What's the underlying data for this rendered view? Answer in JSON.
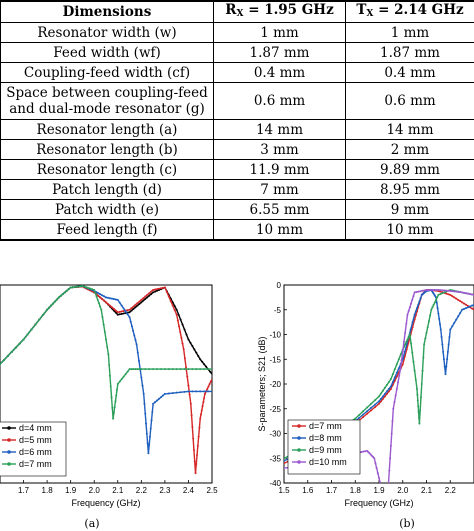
{
  "table": {
    "headers": [
      "Dimensions",
      "R",
      "X",
      "= 1.95 GHz",
      "T",
      "X",
      "= 2.14 GHz"
    ],
    "rows": [
      {
        "name": "Resonator width (w)",
        "rx": "1 mm",
        "tx": "1 mm"
      },
      {
        "name": "Feed width (wf)",
        "rx": "1.87 mm",
        "tx": "1.87 mm"
      },
      {
        "name": "Coupling-feed width (cf)",
        "rx": "0.4 mm",
        "tx": "0.4 mm"
      },
      {
        "name": "Space between coupling-feed and dual-mode resonator (g)",
        "rx": "0.6 mm",
        "tx": "0.6 mm"
      },
      {
        "name": "Resonator length (a)",
        "rx": "14 mm",
        "tx": "14 mm"
      },
      {
        "name": "Resonator length (b)",
        "rx": "3 mm",
        "tx": "2 mm"
      },
      {
        "name": "Resonator length (c)",
        "rx": "11.9 mm",
        "tx": "9.89 mm"
      },
      {
        "name": "Patch length (d)",
        "rx": "7 mm",
        "tx": "8.95 mm"
      },
      {
        "name": "Patch width (e)",
        "rx": "6.55 mm",
        "tx": "9 mm"
      },
      {
        "name": "Feed length (f)",
        "rx": "10 mm",
        "tx": "10 mm"
      }
    ]
  },
  "chart_data": [
    {
      "type": "line",
      "caption": "(a)",
      "xlabel": "Frequency (GHz)",
      "ylabel": "",
      "xlim": [
        1.6,
        2.5
      ],
      "ylim": [
        -40,
        0
      ],
      "xticks": [
        "1.7",
        "1.8",
        "1.9",
        "2.0",
        "2.1",
        "2.2",
        "2.3",
        "2.4",
        "2.5"
      ],
      "legend_position": "bottom-left",
      "series": [
        {
          "name": "d=4 mm",
          "color": "#000000",
          "x": [
            1.6,
            1.7,
            1.8,
            1.85,
            1.9,
            1.95,
            2.0,
            2.05,
            2.1,
            2.15,
            2.2,
            2.25,
            2.3,
            2.35,
            2.4,
            2.45,
            2.5
          ],
          "y": [
            -16,
            -11,
            -5,
            -2.5,
            -0.5,
            -0.3,
            -1.5,
            -3.5,
            -6,
            -5.5,
            -3.5,
            -1.5,
            -0.5,
            -5,
            -11,
            -15,
            -18
          ]
        },
        {
          "name": "d=5 mm",
          "color": "#d62728",
          "x": [
            1.6,
            1.7,
            1.8,
            1.85,
            1.9,
            1.95,
            2.0,
            2.05,
            2.1,
            2.15,
            2.2,
            2.25,
            2.3,
            2.35,
            2.38,
            2.41,
            2.43,
            2.45,
            2.47,
            2.5
          ],
          "y": [
            -16,
            -11,
            -5,
            -2.5,
            -0.5,
            -0.3,
            -1.5,
            -3.5,
            -5.5,
            -5,
            -3,
            -1,
            -0.5,
            -6,
            -13,
            -24,
            -38,
            -27,
            -22,
            -19
          ]
        },
        {
          "name": "d=6 mm",
          "color": "#1f5fbf",
          "x": [
            1.6,
            1.7,
            1.8,
            1.85,
            1.9,
            1.95,
            2.0,
            2.05,
            2.1,
            2.15,
            2.18,
            2.21,
            2.23,
            2.25,
            2.3,
            2.4,
            2.5
          ],
          "y": [
            -16,
            -11,
            -5,
            -2.5,
            -0.5,
            -0.2,
            -1.2,
            -2.5,
            -3,
            -6.5,
            -12,
            -22,
            -34,
            -24,
            -22,
            -21.5,
            -21.5
          ]
        },
        {
          "name": "d=7 mm",
          "color": "#2ca05a",
          "x": [
            1.6,
            1.7,
            1.8,
            1.85,
            1.9,
            1.95,
            2.0,
            2.03,
            2.06,
            2.08,
            2.1,
            2.15,
            2.2,
            2.3,
            2.4,
            2.5
          ],
          "y": [
            -16,
            -11,
            -5,
            -2.5,
            -0.5,
            -0.2,
            -1,
            -5,
            -14,
            -27,
            -20,
            -17,
            -17,
            -17,
            -17,
            -17
          ]
        }
      ]
    },
    {
      "type": "line",
      "caption": "(b)",
      "xlabel": "Frequency (GHz)",
      "ylabel": "S-parameters; S21 (dB)",
      "xlim": [
        1.5,
        2.3
      ],
      "ylim": [
        -40,
        0
      ],
      "xticks": [
        "1.5",
        "1.6",
        "1.7",
        "1.8",
        "1.9",
        "2.0",
        "2.1",
        "2.2"
      ],
      "yticks": [
        "0",
        "-5",
        "-10",
        "-15",
        "-20",
        "-25",
        "-30",
        "-35",
        "-40"
      ],
      "legend_position": "bottom-left",
      "series": [
        {
          "name": "d=7 mm",
          "color": "#d62728",
          "x": [
            1.5,
            1.6,
            1.7,
            1.8,
            1.9,
            1.95,
            2.0,
            2.05,
            2.08,
            2.1,
            2.12,
            2.15,
            2.2,
            2.25,
            2.3
          ],
          "y": [
            -36,
            -34,
            -31,
            -28,
            -24,
            -21,
            -16,
            -7,
            -2,
            -1,
            -1,
            -1.2,
            -2,
            -3.5,
            -5
          ]
        },
        {
          "name": "d=8 mm",
          "color": "#1f5fbf",
          "x": [
            1.5,
            1.6,
            1.7,
            1.8,
            1.9,
            1.95,
            2.0,
            2.05,
            2.08,
            2.1,
            2.12,
            2.14,
            2.16,
            2.18,
            2.2,
            2.25,
            2.3
          ],
          "y": [
            -35.5,
            -33.5,
            -30.5,
            -27.5,
            -23.5,
            -20.5,
            -15,
            -6,
            -2,
            -1.2,
            -1,
            -2.5,
            -9,
            -18,
            -9,
            -5,
            -4
          ]
        },
        {
          "name": "d=9 mm",
          "color": "#2ca05a",
          "x": [
            1.5,
            1.6,
            1.7,
            1.8,
            1.9,
            1.95,
            2.0,
            2.03,
            2.06,
            2.07,
            2.09,
            2.12,
            2.15,
            2.2,
            2.25,
            2.3
          ],
          "y": [
            -35,
            -33,
            -30,
            -27,
            -22.5,
            -19,
            -13,
            -10,
            -21,
            -28,
            -12,
            -5,
            -2,
            -1,
            -1.5,
            -2
          ]
        },
        {
          "name": "d=10 mm",
          "color": "#9b59d0",
          "x": [
            1.5,
            1.6,
            1.7,
            1.75,
            1.8,
            1.85,
            1.88,
            1.91,
            1.93,
            1.94,
            1.96,
            1.99,
            2.02,
            2.05,
            2.1,
            2.15,
            2.2,
            2.25,
            2.3
          ],
          "y": [
            -37,
            -36.5,
            -35.5,
            -35,
            -34,
            -33.5,
            -35,
            -41,
            -46,
            -40,
            -25,
            -17,
            -6,
            -1.5,
            -1,
            -1,
            -1.2,
            -1.5,
            -2
          ]
        }
      ]
    }
  ]
}
